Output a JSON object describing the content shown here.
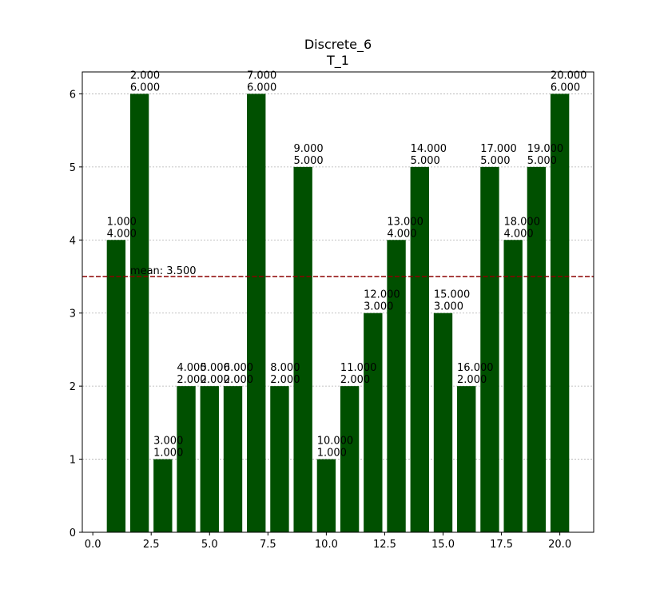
{
  "chart_data": {
    "type": "bar",
    "title": "Discrete_6",
    "subtitle": "T_1",
    "xlabel": "",
    "ylabel": "",
    "xlim": [
      -0.45,
      21.45
    ],
    "ylim": [
      0,
      6.3
    ],
    "x_ticks": [
      0.0,
      2.5,
      5.0,
      7.5,
      10.0,
      12.5,
      15.0,
      17.5,
      20.0
    ],
    "x_tick_labels": [
      "0.0",
      "2.5",
      "5.0",
      "7.5",
      "10.0",
      "12.5",
      "15.0",
      "17.5",
      "20.0"
    ],
    "y_ticks": [
      0,
      1,
      2,
      3,
      4,
      5,
      6
    ],
    "y_tick_labels": [
      "0",
      "1",
      "2",
      "3",
      "4",
      "5",
      "6"
    ],
    "grid": "horizontal dotted",
    "bar_color": "#005000",
    "x": [
      1,
      2,
      3,
      4,
      5,
      6,
      7,
      8,
      9,
      10,
      11,
      12,
      13,
      14,
      15,
      16,
      17,
      18,
      19,
      20
    ],
    "values": [
      4,
      6,
      1,
      2,
      2,
      2,
      6,
      2,
      5,
      1,
      2,
      3,
      4,
      5,
      3,
      2,
      5,
      4,
      5,
      6
    ],
    "data_labels": [
      [
        "1.000",
        "4.000"
      ],
      [
        "2.000",
        "6.000"
      ],
      [
        "3.000",
        "1.000"
      ],
      [
        "4.000",
        "2.000"
      ],
      [
        "5.000",
        "2.000"
      ],
      [
        "6.000",
        "2.000"
      ],
      [
        "7.000",
        "6.000"
      ],
      [
        "8.000",
        "2.000"
      ],
      [
        "9.000",
        "5.000"
      ],
      [
        "10.000",
        "1.000"
      ],
      [
        "11.000",
        "2.000"
      ],
      [
        "12.000",
        "3.000"
      ],
      [
        "13.000",
        "4.000"
      ],
      [
        "14.000",
        "5.000"
      ],
      [
        "15.000",
        "3.000"
      ],
      [
        "16.000",
        "2.000"
      ],
      [
        "17.000",
        "5.000"
      ],
      [
        "18.000",
        "4.000"
      ],
      [
        "19.000",
        "5.000"
      ],
      [
        "20.000",
        "6.000"
      ]
    ],
    "mean": {
      "value": 3.5,
      "label": "mean: 3.500",
      "color": "#8b0000"
    }
  }
}
